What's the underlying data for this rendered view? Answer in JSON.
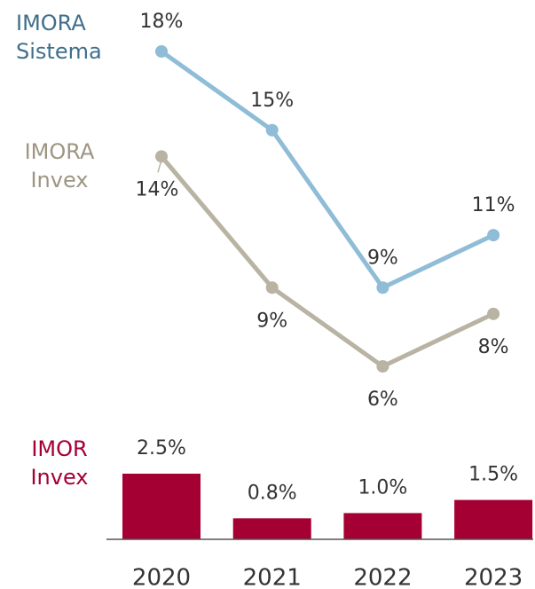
{
  "chart_data": [
    {
      "type": "line",
      "series": [
        {
          "name": "IMORA Sistema",
          "color": "#8fbcd6",
          "values": [
            18,
            15,
            9,
            11
          ],
          "value_labels": [
            "18%",
            "15%",
            "9%",
            "11%"
          ]
        },
        {
          "name": "IMORA Invex",
          "color": "#b9b3a3",
          "values": [
            14,
            9,
            6,
            8
          ],
          "value_labels": [
            "14%",
            "9%",
            "6%",
            "8%"
          ]
        }
      ]
    },
    {
      "type": "bar",
      "categories": [
        "2020",
        "2021",
        "2022",
        "2023"
      ],
      "series": [
        {
          "name": "IMOR Invex",
          "color": "#a50034",
          "values": [
            2.5,
            0.8,
            1.0,
            1.5
          ],
          "value_labels": [
            "2.5%",
            "0.8%",
            "1.0%",
            "1.5%"
          ]
        }
      ]
    }
  ]
}
